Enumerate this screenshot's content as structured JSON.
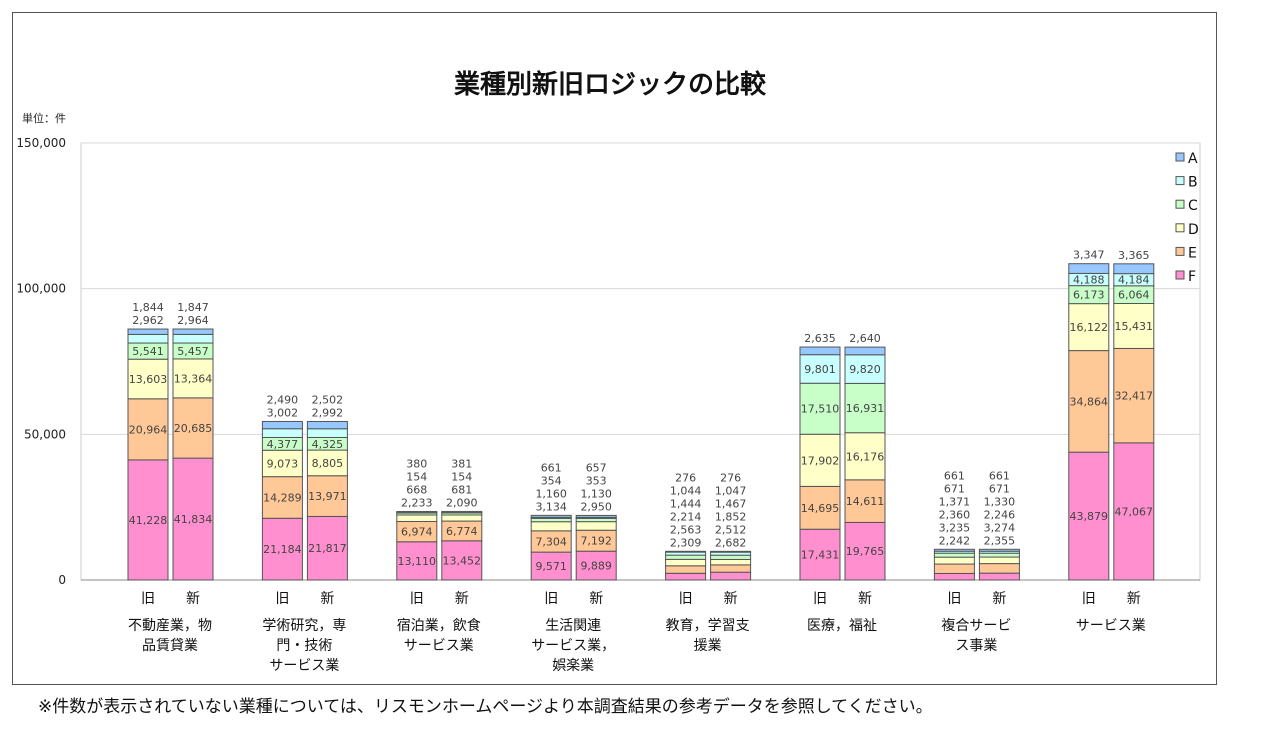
{
  "title": "業種別新旧ロジックの比較",
  "unit_label": "単位：件",
  "footnote": "※件数が表示されていない業種については、リスモンホームページより本調査結果の参考データを参照してください。",
  "chart_data": {
    "type": "bar",
    "stacked": true,
    "title": "業種別新旧ロジックの比較",
    "ylabel": "単位：件",
    "ylim": [
      0,
      150000
    ],
    "yticks": [
      "0",
      "50,000",
      "100,000",
      "150,000"
    ],
    "grid": true,
    "legend_position": "right",
    "bar_labels": [
      "旧",
      "新"
    ],
    "categories": [
      [
        "不動産業，物",
        "品賃貸業"
      ],
      [
        "学術研究，専",
        "門・技術",
        "サービス業"
      ],
      [
        "宿泊業，飲食",
        "サービス業"
      ],
      [
        "生活関連",
        "サービス業，",
        "娯楽業"
      ],
      [
        "教育，学習支",
        "援業"
      ],
      [
        "医療，福祉"
      ],
      [
        "複合サービ",
        "ス事業"
      ],
      [
        "サービス業"
      ]
    ],
    "series_names": [
      "F",
      "E",
      "D",
      "C",
      "B",
      "A"
    ],
    "colors": {
      "F": "#ff8fcf",
      "E": "#ffc896",
      "D": "#ffffc8",
      "C": "#c8ffc8",
      "B": "#c8ffff",
      "A": "#96c8ff"
    },
    "values": [
      {
        "old": [
          41228,
          20964,
          13603,
          5541,
          2962,
          1844
        ],
        "new": [
          41834,
          20685,
          13364,
          5457,
          2964,
          1847
        ]
      },
      {
        "old": [
          21184,
          14289,
          9073,
          4377,
          3002,
          2490
        ],
        "new": [
          21817,
          13971,
          8805,
          4325,
          2992,
          2502
        ]
      },
      {
        "old": [
          13110,
          6974,
          2233,
          668,
          154,
          380
        ],
        "new": [
          13452,
          6774,
          2090,
          681,
          154,
          381
        ]
      },
      {
        "old": [
          9571,
          7304,
          3134,
          1160,
          354,
          661
        ],
        "new": [
          9889,
          7192,
          2950,
          1130,
          353,
          657
        ]
      },
      {
        "old": [
          2309,
          2563,
          2214,
          1444,
          1044,
          276
        ],
        "new": [
          2682,
          2512,
          1852,
          1467,
          1047,
          276
        ]
      },
      {
        "old": [
          17431,
          14695,
          17902,
          17510,
          9801,
          2635
        ],
        "new": [
          19765,
          14611,
          16176,
          16931,
          9820,
          2640
        ]
      },
      {
        "old": [
          2242,
          3235,
          2360,
          1371,
          671,
          661
        ],
        "new": [
          2355,
          3274,
          2246,
          1330,
          671,
          661
        ]
      },
      {
        "old": [
          43879,
          34864,
          16122,
          6173,
          4188,
          3347
        ],
        "new": [
          47067,
          32417,
          15431,
          6064,
          4184,
          3365
        ]
      }
    ]
  }
}
